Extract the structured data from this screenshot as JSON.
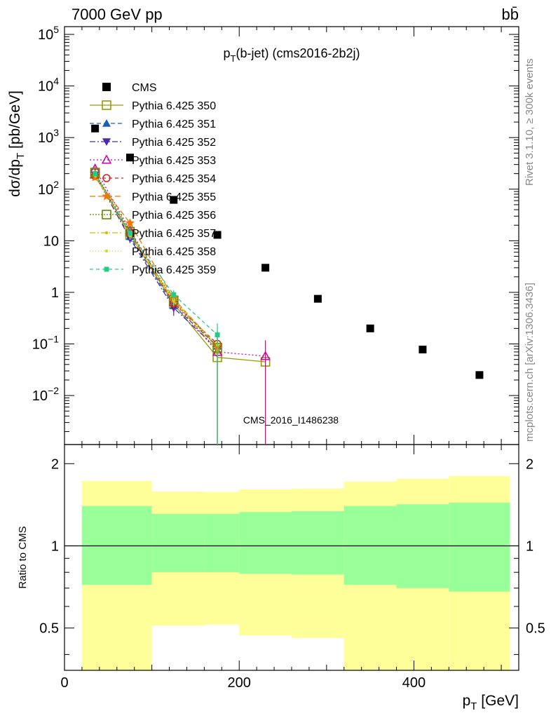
{
  "header": {
    "left": "7000 GeV pp",
    "right": "bb̄"
  },
  "plot_title": "p_T(b-jet) (cms2016-2b2j)",
  "watermark": "CMS_2016_I1486238",
  "side_labels": {
    "rivet": "Rivet 3.1.10, ≥ 300k events",
    "mcplots": "mcplots.cern.ch [arXiv:1306.3436]"
  },
  "axes": {
    "ylabel_main": "dσ/dp_T [pb/GeV]",
    "ylabel_ratio": "Ratio to CMS",
    "xlabel": "p_T [GeV]",
    "x_ticks": [
      "0",
      "200",
      "400"
    ],
    "y_main_ticks": [
      "10^-2",
      "10^-1",
      "1",
      "10",
      "10^2",
      "10^3",
      "10^4",
      "10^5"
    ],
    "y_ratio_ticks": [
      "0.5",
      "1",
      "2"
    ]
  },
  "legend": [
    {
      "label": "CMS",
      "color": "#000000",
      "marker": "filled-square",
      "dash": ""
    },
    {
      "label": "Pythia 6.425 350",
      "color": "#999900",
      "marker": "open-square",
      "dash": ""
    },
    {
      "label": "Pythia 6.425 351",
      "color": "#1a5fb4",
      "marker": "filled-triangle-up",
      "dash": "6,4"
    },
    {
      "label": "Pythia 6.425 352",
      "color": "#4b2aad",
      "marker": "filled-triangle-down",
      "dash": "8,3,2,3"
    },
    {
      "label": "Pythia 6.425 353",
      "color": "#cc00aa",
      "marker": "open-triangle-up",
      "dash": "2,3"
    },
    {
      "label": "Pythia 6.425 354",
      "color": "#e41a1c",
      "marker": "open-circle",
      "dash": "5,4"
    },
    {
      "label": "Pythia 6.425 355",
      "color": "#f07800",
      "marker": "star",
      "dash": "8,4"
    },
    {
      "label": "Pythia 6.425 356",
      "color": "#668800",
      "marker": "open-square",
      "dash": "2,2"
    },
    {
      "label": "Pythia 6.425 357",
      "color": "#ddbb00",
      "marker": "small-dot",
      "dash": "8,3,2,3"
    },
    {
      "label": "Pythia 6.425 358",
      "color": "#ccdd22",
      "marker": "small-dot",
      "dash": "1,3"
    },
    {
      "label": "Pythia 6.425 359",
      "color": "#22cc88",
      "marker": "filled-square-small",
      "dash": "5,4"
    }
  ],
  "chart_data": {
    "type": "scatter",
    "x_range": [
      0,
      520
    ],
    "y_main_range_log10": [
      -2.95,
      5.15
    ],
    "y_ratio_range": [
      0.35,
      2.35
    ],
    "y_main_scale": "log",
    "cms_data": {
      "x": [
        35,
        75,
        125,
        175,
        230,
        290,
        350,
        410,
        475
      ],
      "y": [
        1500,
        410,
        62,
        13,
        3.0,
        0.75,
        0.2,
        0.078,
        0.025
      ]
    },
    "mc_series": [
      {
        "x": [
          35,
          75,
          125,
          175,
          230
        ],
        "y": [
          200,
          13,
          0.6,
          0.055,
          0.045
        ],
        "yerr_lo": [
          20,
          2,
          0.15,
          0.05,
          0.044
        ],
        "yerr_hi": [
          20,
          2,
          0.15,
          0.05,
          0.02
        ]
      },
      {
        "x": [
          35,
          75,
          125,
          175
        ],
        "y": [
          195,
          12,
          0.55,
          0.09
        ],
        "yerr_lo": [
          20,
          2,
          0.15,
          0.089
        ],
        "yerr_hi": [
          20,
          2,
          0.15,
          0.08
        ]
      },
      {
        "x": [
          35,
          75,
          125,
          175
        ],
        "y": [
          190,
          11,
          0.5,
          0.08
        ],
        "yerr_lo": [
          20,
          2,
          0.15,
          0.079
        ],
        "yerr_hi": [
          20,
          2,
          0.15,
          0.08
        ]
      },
      {
        "x": [
          35,
          75,
          125,
          175,
          230
        ],
        "y": [
          250,
          16,
          0.65,
          0.07,
          0.058
        ],
        "yerr_lo": [
          25,
          2,
          0.15,
          0.069,
          0.057
        ],
        "yerr_hi": [
          25,
          2,
          0.15,
          0.05,
          0.06
        ]
      },
      {
        "x": [
          35,
          75,
          125,
          175
        ],
        "y": [
          180,
          14,
          0.62,
          0.1
        ],
        "yerr_lo": [
          20,
          2,
          0.15,
          0.099
        ],
        "yerr_hi": [
          20,
          2,
          0.15,
          0.08
        ]
      },
      {
        "x": [
          35,
          75,
          125,
          175
        ],
        "y": [
          170,
          22,
          0.75,
          0.09
        ],
        "yerr_lo": [
          20,
          3,
          0.2,
          0.089
        ],
        "yerr_hi": [
          20,
          3,
          0.2,
          0.08
        ]
      },
      {
        "x": [
          35,
          75,
          125,
          175
        ],
        "y": [
          210,
          15,
          0.7,
          0.085
        ],
        "yerr_lo": [
          20,
          2,
          0.15,
          0.084
        ],
        "yerr_hi": [
          20,
          2,
          0.15,
          0.08
        ]
      },
      {
        "x": [
          35,
          75,
          125,
          175
        ],
        "y": [
          185,
          13,
          0.68,
          0.075
        ],
        "yerr_lo": [
          20,
          2,
          0.15,
          0.074
        ],
        "yerr_hi": [
          20,
          2,
          0.15,
          0.08
        ]
      },
      {
        "x": [
          35,
          75,
          125,
          175
        ],
        "y": [
          190,
          12.5,
          0.72,
          0.095
        ],
        "yerr_lo": [
          20,
          2,
          0.15,
          0.094
        ],
        "yerr_hi": [
          20,
          2,
          0.15,
          0.08
        ]
      },
      {
        "x": [
          35,
          75,
          125,
          175
        ],
        "y": [
          200,
          14,
          0.9,
          0.15
        ],
        "yerr_lo": [
          20,
          2,
          0.2,
          0.149
        ],
        "yerr_hi": [
          20,
          2,
          0.2,
          0.1
        ]
      }
    ],
    "ratio_bands": {
      "bin_edges": [
        20,
        100,
        160,
        200,
        260,
        320,
        380,
        440,
        510
      ],
      "green_lo": [
        0.72,
        0.8,
        0.8,
        0.79,
        0.785,
        0.72,
        0.7,
        0.68
      ],
      "green_hi": [
        1.4,
        1.31,
        1.31,
        1.33,
        1.34,
        1.4,
        1.42,
        1.44
      ],
      "yellow_lo": [
        0.35,
        0.51,
        0.515,
        0.47,
        0.46,
        0.35,
        0.35,
        0.35
      ],
      "yellow_hi": [
        1.73,
        1.58,
        1.575,
        1.61,
        1.62,
        1.72,
        1.76,
        1.8
      ]
    },
    "ratio_reference": 1
  }
}
